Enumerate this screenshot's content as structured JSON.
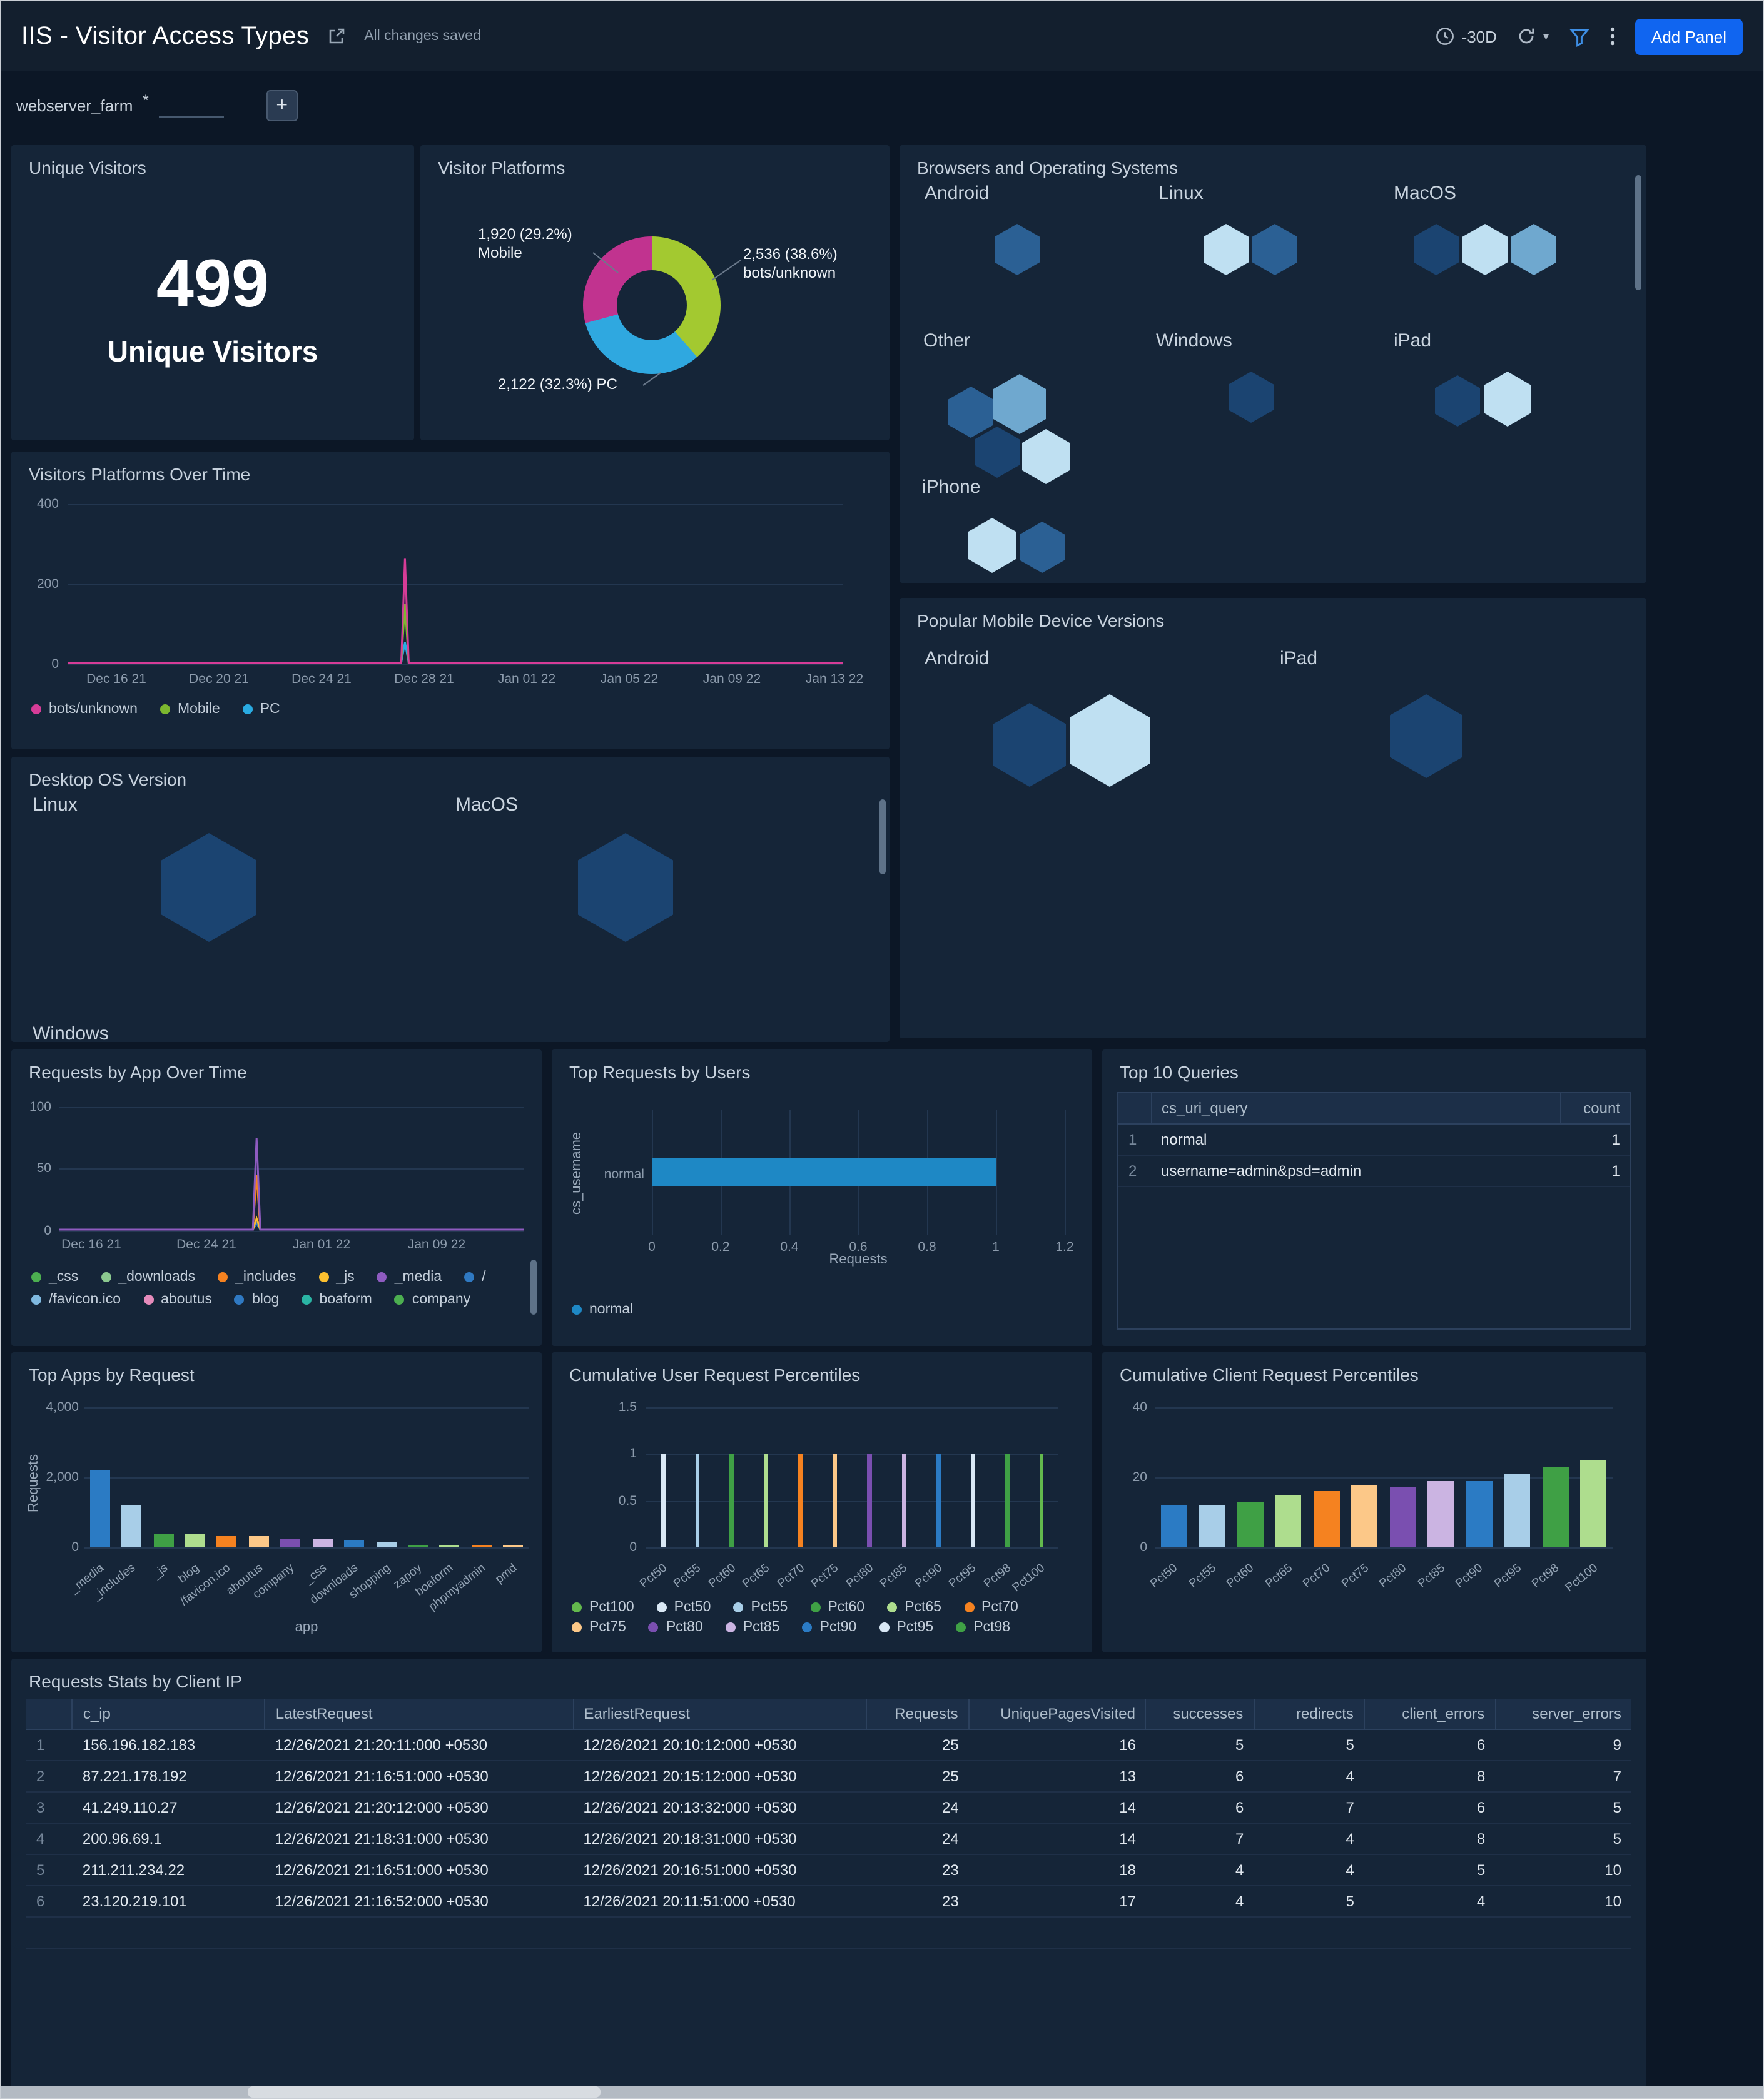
{
  "window": {
    "title": "IIS - Visitor Access Types",
    "saved_status": "All changes saved",
    "time_range": "-30D",
    "add_panel_label": "Add Panel"
  },
  "filter": {
    "name": "webserver_farm",
    "required_mark": "*",
    "value": "",
    "add_label": "+"
  },
  "panels": {
    "unique_visitors": {
      "title": "Unique Visitors",
      "value": "499",
      "label": "Unique Visitors"
    },
    "visitor_platforms": {
      "title": "Visitor Platforms"
    },
    "browsers_os": {
      "title": "Browsers and Operating Systems",
      "groups": [
        {
          "name": "Android",
          "layout": "row",
          "hexes": [
            {
              "tone": "mid",
              "size": 36
            }
          ]
        },
        {
          "name": "Linux",
          "layout": "row",
          "hexes": [
            {
              "tone": "pale",
              "size": 36
            },
            {
              "tone": "mid",
              "size": 36
            }
          ]
        },
        {
          "name": "MacOS",
          "layout": "row",
          "hexes": [
            {
              "tone": "dark",
              "size": 36
            },
            {
              "tone": "pale",
              "size": 36
            },
            {
              "tone": "midlight",
              "size": 36
            }
          ]
        },
        {
          "name": "Other",
          "layout": "cluster",
          "hexes": [
            {
              "tone": "mid",
              "size": 36
            },
            {
              "tone": "midlight",
              "size": 42
            },
            {
              "tone": "dark",
              "size": 36
            },
            {
              "tone": "pale",
              "size": 38
            }
          ]
        },
        {
          "name": "Windows",
          "layout": "row",
          "hexes": [
            {
              "tone": "dark",
              "size": 36
            }
          ]
        },
        {
          "name": "iPad",
          "layout": "row",
          "hexes": [
            {
              "tone": "dark",
              "size": 36
            },
            {
              "tone": "pale",
              "size": 38
            }
          ]
        },
        {
          "name": "iPhone",
          "layout": "row",
          "hexes": [
            {
              "tone": "pale",
              "size": 38
            },
            {
              "tone": "mid",
              "size": 36
            }
          ]
        }
      ]
    },
    "platforms_over_time": {
      "title": "Visitors Platforms Over Time"
    },
    "popular_mobile": {
      "title": "Popular Mobile Device Versions",
      "groups": [
        {
          "name": "Android",
          "layout": "row",
          "hexes": [
            {
              "tone": "dark",
              "size": 58
            },
            {
              "tone": "pale",
              "size": 64
            }
          ]
        },
        {
          "name": "iPad",
          "layout": "row",
          "hexes": [
            {
              "tone": "dark",
              "size": 58
            }
          ]
        }
      ]
    },
    "desktop_os": {
      "title": "Desktop OS Version",
      "groups": [
        {
          "name": "Linux",
          "layout": "row",
          "hexes": [
            {
              "tone": "dark",
              "size": 76
            }
          ]
        },
        {
          "name": "MacOS",
          "layout": "row",
          "hexes": [
            {
              "tone": "dark",
              "size": 76
            }
          ]
        },
        {
          "name": "Windows",
          "layout": "row",
          "hexes": []
        }
      ]
    },
    "requests_by_app": {
      "title": "Requests by App Over Time"
    },
    "top_requests_users": {
      "title": "Top Requests by Users"
    },
    "top_queries": {
      "title": "Top 10 Queries"
    },
    "top_apps": {
      "title": "Top Apps by Request"
    },
    "cum_user": {
      "title": "Cumulative User Request Percentiles"
    },
    "cum_client": {
      "title": "Cumulative Client Request Percentiles"
    },
    "requests_stats": {
      "title": "Requests Stats by Client IP"
    }
  },
  "chart_data": [
    {
      "id": "visitor_platforms",
      "type": "pie",
      "title": "Visitor Platforms",
      "slices": [
        {
          "label": "bots/unknown",
          "value": 2536,
          "pct": "38.6%",
          "text": "2,536 (38.6%)",
          "color": "#A3C930"
        },
        {
          "label": "PC",
          "value": 2122,
          "pct": "32.3%",
          "text": "2,122 (32.3%)",
          "color": "#2FA8E0"
        },
        {
          "label": "Mobile",
          "value": 1920,
          "pct": "29.2%",
          "text": "1,920 (29.2%)",
          "color": "#C1338F"
        }
      ]
    },
    {
      "id": "platforms_over_time",
      "type": "line",
      "ymax": 400,
      "yticks": [
        "400",
        "200",
        "0"
      ],
      "xticks": [
        "Dec 16 21",
        "Dec 20 21",
        "Dec 24 21",
        "Dec 28 21",
        "Jan 01 22",
        "Jan 05 22",
        "Jan 09 22",
        "Jan 13 22"
      ],
      "series": [
        {
          "name": "bots/unknown",
          "color": "#D63C97",
          "base": 3,
          "spike_x": 0.435,
          "spike_y": 265
        },
        {
          "name": "Mobile",
          "color": "#7CB82F",
          "base": 3,
          "spike_x": 0.435,
          "spike_y": 150
        },
        {
          "name": "PC",
          "color": "#29ABE2",
          "base": 3,
          "spike_x": 0.435,
          "spike_y": 55
        }
      ]
    },
    {
      "id": "requests_by_app",
      "type": "line",
      "ymax": 100,
      "yticks": [
        "100",
        "50",
        "0"
      ],
      "xticks": [
        "Dec 16 21",
        "Dec 24 21",
        "Jan 01 22",
        "Jan 09 22"
      ],
      "series": [
        {
          "name": "_media",
          "color": "#8E5BC0",
          "base": 1,
          "spike_x": 0.425,
          "spike_y": 75
        },
        {
          "name": "_includes",
          "color": "#F58220",
          "base": 1,
          "spike_x": 0.425,
          "spike_y": 45
        },
        {
          "name": "_js",
          "color": "#FDC02F",
          "base": 1,
          "spike_x": 0.425,
          "spike_y": 10
        },
        {
          "name": "blog",
          "color": "#2F79C2",
          "base": 1,
          "spike_x": 0.425,
          "spike_y": 6
        }
      ],
      "legend": [
        {
          "label": "_css",
          "color": "#4CAF50"
        },
        {
          "label": "_downloads",
          "color": "#8BC98F"
        },
        {
          "label": "_includes",
          "color": "#F58220"
        },
        {
          "label": "_js",
          "color": "#FDC02F"
        },
        {
          "label": "_media",
          "color": "#8E5BC0"
        },
        {
          "label": "/",
          "color": "#2F79C2"
        },
        {
          "label": "/favicon.ico",
          "color": "#7FB9E0"
        },
        {
          "label": "aboutus",
          "color": "#E58BBB"
        },
        {
          "label": "blog",
          "color": "#2F79C2"
        },
        {
          "label": "boaform",
          "color": "#2AB5A5"
        },
        {
          "label": "company",
          "color": "#4CAF50"
        }
      ]
    },
    {
      "id": "top_requests_users",
      "type": "bar",
      "orientation": "horizontal",
      "ylabel": "cs_username",
      "xlabel": "Requests",
      "xmax": 1.2,
      "categories": [
        "normal"
      ],
      "values": [
        1
      ],
      "xticks": [
        "0",
        "0.2",
        "0.4",
        "0.6",
        "0.8",
        "1",
        "1.2"
      ],
      "color": "#1E88C5",
      "legend": [
        {
          "label": "normal",
          "color": "#1E88C5"
        }
      ]
    },
    {
      "id": "top_queries",
      "type": "table",
      "columns": [
        "cs_uri_query",
        "count"
      ],
      "rows": [
        [
          "1",
          "normal",
          "1"
        ],
        [
          "2",
          "username=admin&psd=admin",
          "1"
        ]
      ]
    },
    {
      "id": "top_apps",
      "type": "bar",
      "ylabel": "Requests",
      "xlabel": "app",
      "ymax": 4000,
      "yticks": [
        "4,000",
        "2,000",
        "0"
      ],
      "categories": [
        "_media",
        "_includes",
        "_js",
        "blog",
        "/favicon.ico",
        "aboutus",
        "company",
        "_css",
        "downloads",
        "shopping",
        "zapoy",
        "boaform",
        "phpmyadmin",
        "pmd"
      ],
      "values": [
        2200,
        1200,
        400,
        400,
        330,
        320,
        260,
        260,
        230,
        160,
        60,
        50,
        50,
        40
      ],
      "colors": [
        "#2B7BC4",
        "#A8CEE8",
        "#3FA045",
        "#AEDD8E",
        "#F58220",
        "#FCC888",
        "#7A4FB0",
        "#CBB4E2",
        "#2B7BC4",
        "#A8CEE8",
        "#3FA045",
        "#AEDD8E",
        "#F58220",
        "#FCC888"
      ]
    },
    {
      "id": "cum_user_pct",
      "type": "bar",
      "ymax": 1.5,
      "yticks": [
        "1.5",
        "1",
        "0.5",
        "0"
      ],
      "categories": [
        "Pct50",
        "Pct55",
        "Pct60",
        "Pct65",
        "Pct70",
        "Pct75",
        "Pct80",
        "Pct85",
        "Pct90",
        "Pct95",
        "Pct98",
        "Pct100"
      ],
      "values": [
        1,
        1,
        1,
        1,
        1,
        1,
        1,
        1,
        1,
        1,
        1,
        1
      ],
      "colors": [
        "#D9E8F5",
        "#A8CEE8",
        "#3FA045",
        "#AEDD8E",
        "#F58220",
        "#FCC888",
        "#7A4FB0",
        "#CBB4E2",
        "#2B7BC4",
        "#D9E8F5",
        "#3FA045",
        "#63B94D"
      ],
      "legend": [
        {
          "label": "Pct100",
          "color": "#63B94D"
        },
        {
          "label": "Pct50",
          "color": "#D9E8F5"
        },
        {
          "label": "Pct55",
          "color": "#A8CEE8"
        },
        {
          "label": "Pct60",
          "color": "#3FA045"
        },
        {
          "label": "Pct65",
          "color": "#AEDD8E"
        },
        {
          "label": "Pct70",
          "color": "#F58220"
        },
        {
          "label": "Pct75",
          "color": "#FCC888"
        },
        {
          "label": "Pct80",
          "color": "#7A4FB0"
        },
        {
          "label": "Pct85",
          "color": "#CBB4E2"
        },
        {
          "label": "Pct90",
          "color": "#2B7BC4"
        },
        {
          "label": "Pct95",
          "color": "#D9E8F5"
        },
        {
          "label": "Pct98",
          "color": "#3FA045"
        }
      ]
    },
    {
      "id": "cum_client_pct",
      "type": "bar",
      "ymax": 40,
      "yticks": [
        "40",
        "20",
        "0"
      ],
      "categories": [
        "Pct50",
        "Pct55",
        "Pct60",
        "Pct65",
        "Pct70",
        "Pct75",
        "Pct80",
        "Pct85",
        "Pct90",
        "Pct95",
        "Pct98",
        "Pct100"
      ],
      "values": [
        12,
        12,
        13,
        15,
        16,
        18,
        17,
        19,
        19,
        21,
        23,
        25
      ],
      "colors": [
        "#2B7BC4",
        "#A8CEE8",
        "#3FA045",
        "#AEDD8E",
        "#F58220",
        "#FCC888",
        "#7A4FB0",
        "#CBB4E2",
        "#2B7BC4",
        "#A8CEE8",
        "#3FA045",
        "#AEDD8E"
      ]
    },
    {
      "id": "requests_stats",
      "type": "table",
      "columns": [
        "c_ip",
        "LatestRequest",
        "EarliestRequest",
        "Requests",
        "UniquePagesVisited",
        "successes",
        "redirects",
        "client_errors",
        "server_errors"
      ],
      "rows": [
        [
          "1",
          "156.196.182.183",
          "12/26/2021 21:20:11:000 +0530",
          "12/26/2021 20:10:12:000 +0530",
          "25",
          "16",
          "5",
          "5",
          "6",
          "9"
        ],
        [
          "2",
          "87.221.178.192",
          "12/26/2021 21:16:51:000 +0530",
          "12/26/2021 20:15:12:000 +0530",
          "25",
          "13",
          "6",
          "4",
          "8",
          "7"
        ],
        [
          "3",
          "41.249.110.27",
          "12/26/2021 21:20:12:000 +0530",
          "12/26/2021 20:13:32:000 +0530",
          "24",
          "14",
          "6",
          "7",
          "6",
          "5"
        ],
        [
          "4",
          "200.96.69.1",
          "12/26/2021 21:18:31:000 +0530",
          "12/26/2021 20:18:31:000 +0530",
          "24",
          "14",
          "7",
          "4",
          "8",
          "5"
        ],
        [
          "5",
          "211.211.234.22",
          "12/26/2021 21:16:51:000 +0530",
          "12/26/2021 20:16:51:000 +0530",
          "23",
          "18",
          "4",
          "4",
          "5",
          "10"
        ],
        [
          "6",
          "23.120.219.101",
          "12/26/2021 21:16:52:000 +0530",
          "12/26/2021 20:11:51:000 +0530",
          "23",
          "17",
          "4",
          "5",
          "4",
          "10"
        ]
      ]
    }
  ]
}
